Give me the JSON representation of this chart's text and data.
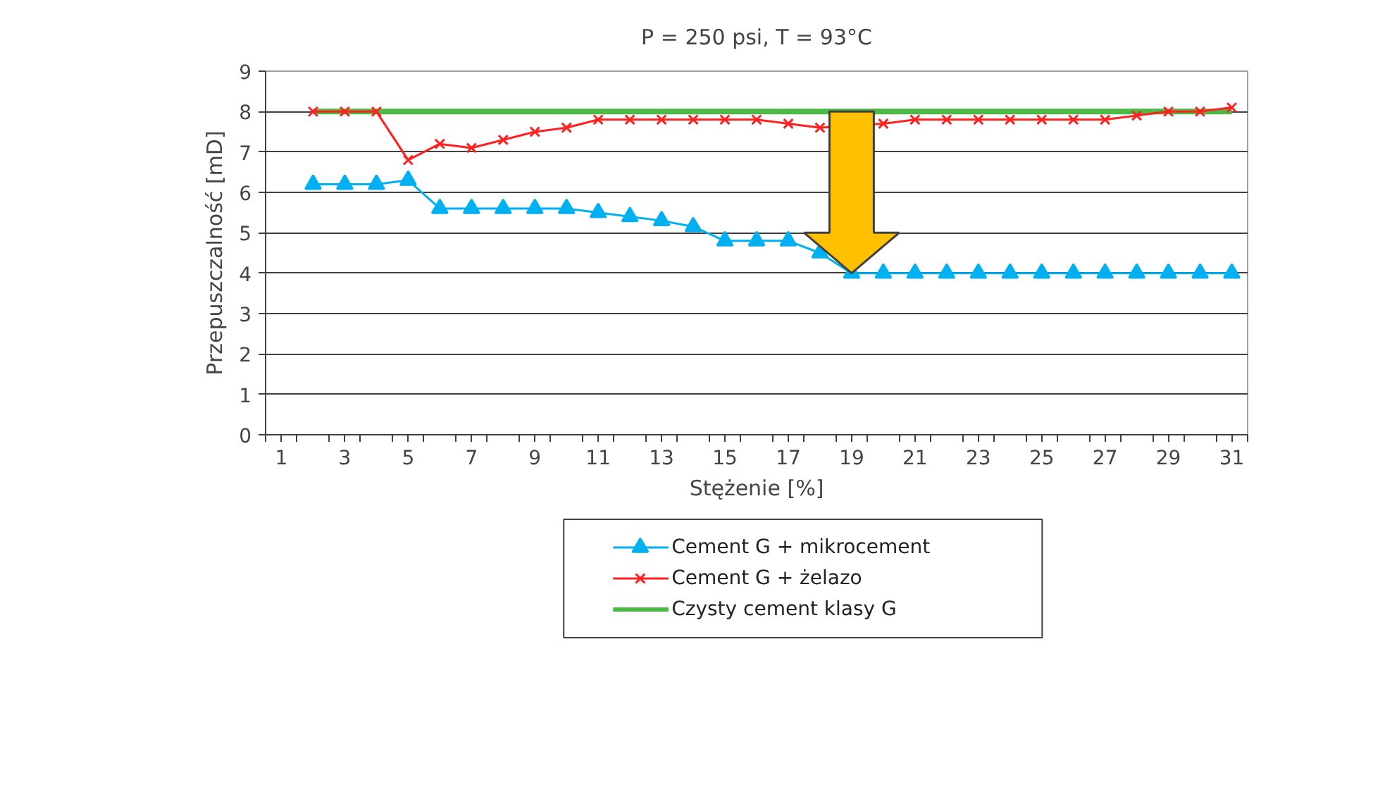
{
  "chart_data": {
    "type": "line",
    "title": "P = 250 psi, T = 93°C",
    "xlabel": "Stężenie [%]",
    "ylabel": "Przepuszczalność [mD]",
    "x": [
      2,
      3,
      4,
      5,
      6,
      7,
      8,
      9,
      10,
      11,
      12,
      13,
      14,
      15,
      16,
      17,
      18,
      19,
      20,
      21,
      22,
      23,
      24,
      25,
      26,
      27,
      28,
      29,
      30,
      31
    ],
    "series": [
      {
        "name": "Cement G + mikrocement",
        "color": "#00b0f0",
        "marker": "triangle",
        "values": [
          6.2,
          6.2,
          6.2,
          6.3,
          5.6,
          5.6,
          5.6,
          5.6,
          5.6,
          5.5,
          5.4,
          5.3,
          5.15,
          4.8,
          4.8,
          4.8,
          4.5,
          4.0,
          4.0,
          4.0,
          4.0,
          4.0,
          4.0,
          4.0,
          4.0,
          4.0,
          4.0,
          4.0,
          4.0,
          4.0
        ]
      },
      {
        "name": "Cement G + żelazo",
        "color": "#ff2020",
        "marker": "cross",
        "values": [
          8,
          8,
          8,
          6.8,
          7.2,
          7.1,
          7.3,
          7.5,
          7.6,
          7.8,
          7.8,
          7.8,
          7.8,
          7.8,
          7.8,
          7.7,
          7.6,
          null,
          7.7,
          7.8,
          7.8,
          7.8,
          7.8,
          7.8,
          7.8,
          7.8,
          7.9,
          8.0,
          8.0,
          8.1
        ]
      },
      {
        "name": "Czysty cement klasy G",
        "color": "#4cb848",
        "marker": "none",
        "values": [
          8,
          8,
          8,
          8,
          8,
          8,
          8,
          8,
          8,
          8,
          8,
          8,
          8,
          8,
          8,
          8,
          8,
          8,
          8,
          8,
          8,
          8,
          8,
          8,
          8,
          8,
          8,
          8,
          8,
          8
        ]
      }
    ],
    "xlim": [
      0.5,
      31.5
    ],
    "xticks": [
      1,
      3,
      5,
      7,
      9,
      11,
      13,
      15,
      17,
      19,
      21,
      23,
      25,
      27,
      29,
      31,
      {
        "value": 0.5,
        "label": null
      },
      {
        "value": 1.5,
        "label": null
      },
      {
        "value": 2.5,
        "label": null
      },
      {
        "value": 3.5,
        "label": null
      },
      {
        "value": 4.5,
        "label": null
      },
      {
        "value": 5.5,
        "label": null
      },
      {
        "value": 6.5,
        "label": null
      },
      {
        "value": 7.5,
        "label": null
      },
      {
        "value": 8.5,
        "label": null
      },
      {
        "value": 9.5,
        "label": null
      },
      {
        "value": 10.5,
        "label": null
      },
      {
        "value": 11.5,
        "label": null
      },
      {
        "value": 12.5,
        "label": null
      },
      {
        "value": 13.5,
        "label": null
      },
      {
        "value": 14.5,
        "label": null
      },
      {
        "value": 15.5,
        "label": null
      },
      {
        "value": 16.5,
        "label": null
      },
      {
        "value": 17.5,
        "label": null
      },
      {
        "value": 18.5,
        "label": null
      },
      {
        "value": 19.5,
        "label": null
      },
      {
        "value": 20.5,
        "label": null
      },
      {
        "value": 21.5,
        "label": null
      },
      {
        "value": 22.5,
        "label": null
      },
      {
        "value": 23.5,
        "label": null
      },
      {
        "value": 24.5,
        "label": null
      },
      {
        "value": 25.5,
        "label": null
      },
      {
        "value": 26.5,
        "label": null
      },
      {
        "value": 27.5,
        "label": null
      },
      {
        "value": 28.5,
        "label": null
      },
      {
        "value": 29.5,
        "label": null
      },
      {
        "value": 30.5,
        "label": null
      },
      {
        "value": 31.5,
        "label": null
      }
    ],
    "ylim": [
      0,
      9
    ],
    "yticks": [
      0,
      1,
      2,
      3,
      4,
      5,
      6,
      7,
      8,
      9
    ],
    "grid": "y",
    "legend": "bottom",
    "line_style": "solid"
  }
}
